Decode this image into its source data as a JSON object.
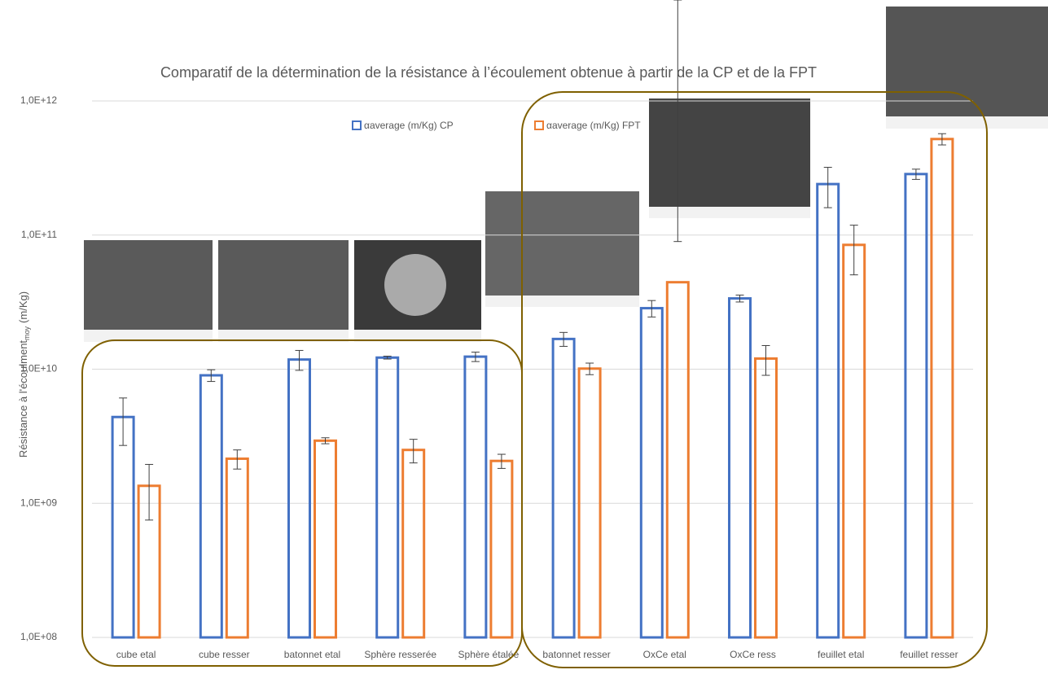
{
  "chart_data": {
    "type": "bar",
    "title": "Comparatif de la détermination de la résistance à l’écoulement obtenue à partir de la CP et de la FPT",
    "ylabel": "Résistance à l'écoulment",
    "ylabel_sub": "moy",
    "ylabel_unit": "(m/Kg)",
    "categories": [
      "cube etal",
      "cube resser",
      "batonnet etal",
      "Sphère resserée",
      "Sphère étalée",
      "batonnet resser",
      "OxCe etal",
      "OxCe ress",
      "feuillet etal",
      "feuillet resser"
    ],
    "series": [
      {
        "name": "αaverage  (m/Kg) CP",
        "color": "#4472c4",
        "values": [
          4400000000,
          9000000000,
          11800000000,
          12200000000,
          12400000000,
          16800000000,
          28500000000,
          33700000000,
          240000000000,
          285000000000
        ],
        "errors": [
          1700000000,
          900000000,
          2000000000,
          300000000,
          1000000000,
          2000000000,
          4000000000,
          2000000000,
          80000000000,
          25000000000
        ]
      },
      {
        "name": "αaverage (m/Kg) FPT",
        "color": "#ed7d31",
        "values": [
          1350000000,
          2150000000,
          2930000000,
          2500000000,
          2070000000,
          10100000000,
          44500000000,
          12000000000,
          84500000000,
          520000000000
        ],
        "errors": [
          600000000,
          350000000,
          150000000,
          500000000,
          250000000,
          1000000000,
          45000000000,
          3000000000,
          34000000000,
          50000000000
        ]
      }
    ],
    "log_scale": true,
    "ylim": [
      100000000,
      1000000000000
    ],
    "yticks": [
      {
        "value": 100000000,
        "label": "1,0E+08"
      },
      {
        "value": 1000000000,
        "label": "1,0E+09"
      },
      {
        "value": 10000000000,
        "label": "1,0E+10"
      },
      {
        "value": 100000000000,
        "label": "1,0E+11"
      },
      {
        "value": 1000000000000,
        "label": "1,0E+12"
      }
    ],
    "grid": true
  }
}
